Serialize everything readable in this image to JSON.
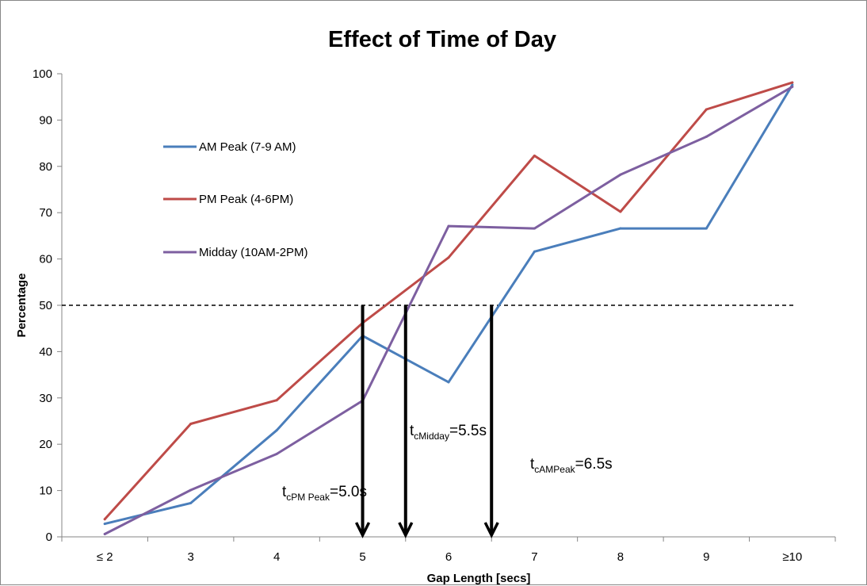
{
  "chart_data": {
    "type": "line",
    "title": "Effect of Time of Day",
    "xlabel": "Gap Length [secs]",
    "ylabel": "Percentage",
    "categories": [
      "≤ 2",
      "3",
      "4",
      "5",
      "6",
      "7",
      "8",
      "9",
      "≥10"
    ],
    "ylim": [
      0,
      100
    ],
    "yticks": [
      0,
      10,
      20,
      30,
      40,
      50,
      60,
      70,
      80,
      90,
      100
    ],
    "grid": false,
    "legend_position": "top-left",
    "series": [
      {
        "name": "AM Peak (7-9 AM)",
        "color": "#4a7ebb",
        "values": [
          2.8,
          7.3,
          23.0,
          43.4,
          33.4,
          61.6,
          66.6,
          66.6,
          97.6
        ]
      },
      {
        "name": "PM Peak (4-6PM)",
        "color": "#be4b48",
        "values": [
          3.8,
          24.4,
          29.5,
          46.2,
          60.3,
          82.3,
          70.2,
          92.3,
          98.1
        ]
      },
      {
        "name": "Midday (10AM-2PM)",
        "color": "#7d5fa0",
        "values": [
          0.6,
          10.1,
          17.9,
          29.4,
          67.1,
          66.6,
          78.2,
          86.4,
          97.2
        ]
      }
    ],
    "threshold": {
      "y": 50,
      "style": "dashed"
    },
    "annotations": [
      {
        "x": 5.0,
        "main": "t",
        "sub": "cPM Peak",
        "rest": "=5.0s"
      },
      {
        "x": 5.5,
        "main": "t",
        "sub": "cMidday",
        "rest": "=5.5s"
      },
      {
        "x": 6.5,
        "main": "t",
        "sub": "cAMPeak",
        "rest": "=6.5s"
      }
    ]
  }
}
